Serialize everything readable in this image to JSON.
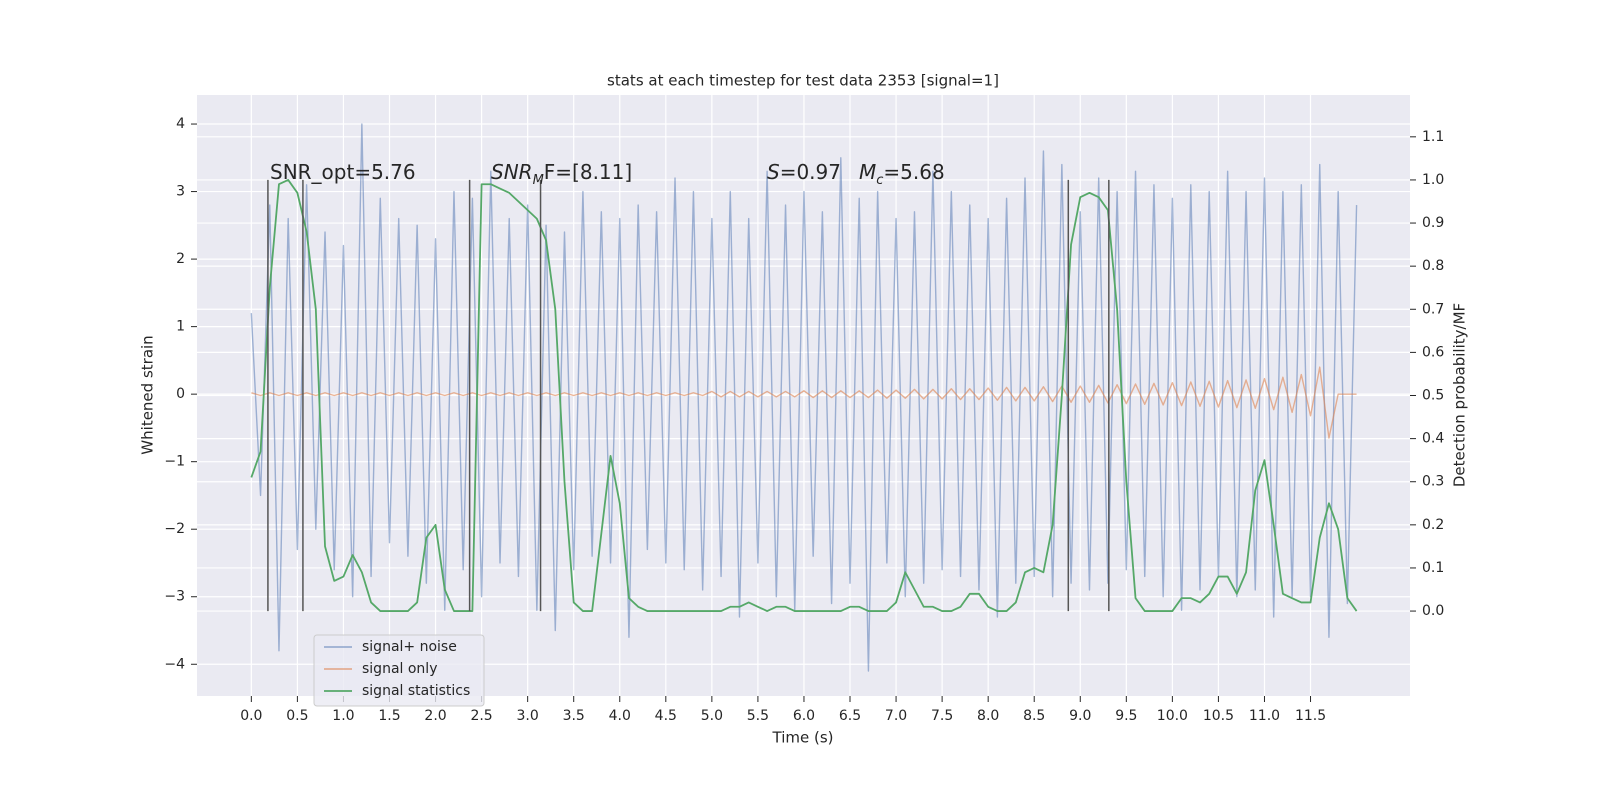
{
  "chart_data": {
    "type": "line",
    "title": "stats at each timestep for test data 2353 [signal=1]",
    "xlabel": "Time (s)",
    "ylabel": "Whitened strain",
    "y2label": "Detection probability/MF",
    "xlim": [
      -0.59,
      12.58
    ],
    "ylim": [
      -4.47,
      4.43
    ],
    "y2lim": [
      -0.197,
      1.197
    ],
    "xticks": [
      {
        "value": 0,
        "label": "0.0"
      },
      {
        "value": 0.5,
        "label": "0.5"
      },
      {
        "value": 1,
        "label": "1.0"
      },
      {
        "value": 1.5,
        "label": "1.5"
      },
      {
        "value": 2,
        "label": "2.0"
      },
      {
        "value": 2.5,
        "label": "2.5"
      },
      {
        "value": 3,
        "label": "3.0"
      },
      {
        "value": 3.5,
        "label": "3.5"
      },
      {
        "value": 4,
        "label": "4.0"
      },
      {
        "value": 4.5,
        "label": "4.5"
      },
      {
        "value": 5,
        "label": "5.0"
      },
      {
        "value": 5.5,
        "label": "5.5"
      },
      {
        "value": 6,
        "label": "6.0"
      },
      {
        "value": 6.5,
        "label": "6.5"
      },
      {
        "value": 7,
        "label": "7.0"
      },
      {
        "value": 7.5,
        "label": "7.5"
      },
      {
        "value": 8,
        "label": "8.0"
      },
      {
        "value": 8.5,
        "label": "8.5"
      },
      {
        "value": 9,
        "label": "9.0"
      },
      {
        "value": 9.5,
        "label": "9.5"
      },
      {
        "value": 10,
        "label": "10.0"
      },
      {
        "value": 10.5,
        "label": "10.5"
      },
      {
        "value": 11,
        "label": "11.0"
      },
      {
        "value": 11.5,
        "label": "11.5"
      }
    ],
    "yticks": [
      {
        "value": -4,
        "label": "−4"
      },
      {
        "value": -3,
        "label": "−3"
      },
      {
        "value": -2,
        "label": "−2"
      },
      {
        "value": -1,
        "label": "−1"
      },
      0,
      1,
      2,
      3,
      4
    ],
    "y2ticks": [
      {
        "value": 0,
        "label": "0.0"
      },
      {
        "value": 0.1,
        "label": "0.1"
      },
      {
        "value": 0.2,
        "label": "0.2"
      },
      {
        "value": 0.3,
        "label": "0.3"
      },
      {
        "value": 0.4,
        "label": "0.4"
      },
      {
        "value": 0.5,
        "label": "0.5"
      },
      {
        "value": 0.6,
        "label": "0.6"
      },
      {
        "value": 0.7,
        "label": "0.7"
      },
      {
        "value": 0.8,
        "label": "0.8"
      },
      {
        "value": 0.9,
        "label": "0.9"
      },
      {
        "value": 1.0,
        "label": "1.0"
      },
      {
        "value": 1.1,
        "label": "1.1"
      }
    ],
    "grid": true,
    "legend": "lower left",
    "x": [
      0,
      0.1,
      0.2,
      0.3,
      0.4,
      0.5,
      0.6,
      0.7,
      0.8,
      0.9,
      1,
      1.1,
      1.2,
      1.3,
      1.4,
      1.5,
      1.6,
      1.7,
      1.8,
      1.9,
      2,
      2.1,
      2.2,
      2.3,
      2.4,
      2.5,
      2.6,
      2.7,
      2.8,
      2.9,
      3,
      3.1,
      3.2,
      3.3,
      3.4,
      3.5,
      3.6,
      3.7,
      3.8,
      3.9,
      4,
      4.1,
      4.2,
      4.3,
      4.4,
      4.5,
      4.6,
      4.7,
      4.8,
      4.9,
      5,
      5.1,
      5.2,
      5.3,
      5.4,
      5.5,
      5.6,
      5.7,
      5.8,
      5.9,
      6,
      6.1,
      6.2,
      6.3,
      6.4,
      6.5,
      6.6,
      6.7,
      6.8,
      6.9,
      7,
      7.1,
      7.2,
      7.3,
      7.4,
      7.5,
      7.6,
      7.7,
      7.8,
      7.9,
      8,
      8.1,
      8.2,
      8.3,
      8.4,
      8.5,
      8.6,
      8.7,
      8.8,
      8.9,
      9,
      9.1,
      9.2,
      9.3,
      9.4,
      9.5,
      9.6,
      9.7,
      9.8,
      9.9,
      10,
      10.1,
      10.2,
      10.3,
      10.4,
      10.5,
      10.6,
      10.7,
      10.8,
      10.9,
      11,
      11.1,
      11.2,
      11.3,
      11.4,
      11.5,
      11.6,
      11.7,
      11.8,
      11.9,
      12
    ],
    "series": [
      {
        "name": "signal+ noise",
        "color": "#4c72b0",
        "opacity": 0.5,
        "values": [
          1.2,
          -1.5,
          2.8,
          -3.8,
          2.6,
          -2.3,
          3.1,
          -2.0,
          2.4,
          -2.6,
          2.2,
          -3.0,
          4.0,
          -2.7,
          2.9,
          -2.2,
          2.6,
          -2.4,
          2.5,
          -2.8,
          2.3,
          -3.2,
          3.0,
          -2.6,
          2.9,
          -3.0,
          3.3,
          -2.5,
          2.6,
          -2.7,
          2.8,
          -3.2,
          2.5,
          -3.5,
          2.4,
          -2.6,
          3.0,
          -2.4,
          2.7,
          -2.5,
          2.6,
          -3.6,
          2.8,
          -2.3,
          2.7,
          -2.5,
          3.2,
          -2.6,
          3.0,
          -2.9,
          2.6,
          -2.7,
          3.0,
          -3.3,
          2.6,
          -2.5,
          3.3,
          -3.0,
          2.8,
          -3.2,
          3.0,
          -2.4,
          2.7,
          -3.1,
          3.5,
          -2.8,
          2.9,
          -4.1,
          3.0,
          -2.5,
          2.6,
          -3.0,
          2.7,
          -2.8,
          3.3,
          -2.6,
          3.0,
          -2.7,
          2.8,
          -2.9,
          2.6,
          -3.3,
          2.9,
          -2.8,
          3.2,
          -2.7,
          3.6,
          -3.0,
          3.4,
          -2.8,
          2.7,
          -2.9,
          3.2,
          -2.8,
          3.0,
          -2.6,
          3.3,
          -2.7,
          3.1,
          -3.0,
          2.9,
          -3.2,
          3.1,
          -2.9,
          3.0,
          -2.7,
          3.3,
          -3.0,
          3.0,
          -2.9,
          3.2,
          -3.3,
          3.0,
          -3.0,
          3.1,
          -3.0,
          3.4,
          -3.6,
          3.0,
          -3.1,
          2.8
        ]
      },
      {
        "name": "signal only",
        "color": "#dd8452",
        "opacity": 0.6,
        "values": [
          0.02,
          -0.02,
          0.02,
          -0.02,
          0.02,
          -0.02,
          0.02,
          -0.02,
          0.02,
          -0.02,
          0.02,
          -0.02,
          0.02,
          -0.02,
          0.02,
          -0.02,
          0.02,
          -0.02,
          0.02,
          -0.02,
          0.02,
          -0.02,
          0.02,
          -0.02,
          0.02,
          -0.02,
          0.02,
          -0.02,
          0.02,
          -0.02,
          0.02,
          -0.02,
          0.02,
          -0.02,
          0.02,
          -0.02,
          0.02,
          -0.02,
          0.02,
          -0.02,
          0.02,
          -0.02,
          0.02,
          -0.02,
          0.02,
          -0.02,
          0.02,
          -0.02,
          0.02,
          -0.02,
          0.04,
          -0.04,
          0.04,
          -0.04,
          0.04,
          -0.04,
          0.04,
          -0.04,
          0.04,
          -0.04,
          0.05,
          -0.05,
          0.05,
          -0.05,
          0.05,
          -0.05,
          0.05,
          -0.05,
          0.06,
          -0.06,
          0.06,
          -0.06,
          0.07,
          -0.07,
          0.07,
          -0.07,
          0.08,
          -0.08,
          0.08,
          -0.08,
          0.09,
          -0.09,
          0.1,
          -0.1,
          0.1,
          -0.1,
          0.11,
          -0.11,
          0.12,
          -0.12,
          0.12,
          -0.12,
          0.13,
          -0.13,
          0.14,
          -0.14,
          0.15,
          -0.15,
          0.16,
          -0.16,
          0.17,
          -0.17,
          0.18,
          -0.18,
          0.19,
          -0.19,
          0.2,
          -0.2,
          0.21,
          -0.21,
          0.23,
          -0.23,
          0.25,
          -0.27,
          0.29,
          -0.32,
          0.4,
          -0.65,
          0,
          0,
          0
        ]
      },
      {
        "name": "signal statistics",
        "color": "#55a868",
        "axis": "y2",
        "opacity": 1,
        "values": [
          0.31,
          0.37,
          0.75,
          0.99,
          1.0,
          0.97,
          0.88,
          0.7,
          0.15,
          0.07,
          0.08,
          0.13,
          0.09,
          0.02,
          0.0,
          0.0,
          0.0,
          0.0,
          0.02,
          0.17,
          0.2,
          0.05,
          0.0,
          0.0,
          0.0,
          0.99,
          0.99,
          0.98,
          0.97,
          0.95,
          0.93,
          0.91,
          0.86,
          0.7,
          0.3,
          0.02,
          0.0,
          0.0,
          0.18,
          0.36,
          0.25,
          0.03,
          0.01,
          0.0,
          0.0,
          0.0,
          0.0,
          0.0,
          0.0,
          0.0,
          0.0,
          0.0,
          0.01,
          0.01,
          0.02,
          0.01,
          0.0,
          0.01,
          0.01,
          0.0,
          0.0,
          0.0,
          0.0,
          0.0,
          0.0,
          0.01,
          0.01,
          0.0,
          0.0,
          0.0,
          0.02,
          0.09,
          0.05,
          0.01,
          0.01,
          0.0,
          0.0,
          0.01,
          0.04,
          0.04,
          0.01,
          0.0,
          0.0,
          0.02,
          0.09,
          0.1,
          0.09,
          0.2,
          0.5,
          0.85,
          0.96,
          0.97,
          0.96,
          0.93,
          0.7,
          0.3,
          0.03,
          0.0,
          0.0,
          0.0,
          0.0,
          0.03,
          0.03,
          0.02,
          0.04,
          0.08,
          0.08,
          0.04,
          0.09,
          0.28,
          0.35,
          0.2,
          0.04,
          0.03,
          0.02,
          0.02,
          0.17,
          0.25,
          0.19,
          0.03,
          0.0
        ]
      }
    ],
    "vlines": [
      0.18,
      0.56,
      2.37,
      3.14,
      8.87,
      9.31
    ],
    "vline_span": [
      0,
      1.0
    ],
    "vline_color": "#555555",
    "annotations": [
      [
        {
          "text": "SNR_opt=5.76"
        }
      ],
      [
        {
          "text": "SNR",
          "style": "italic"
        },
        {
          "text": "M",
          "style": "sub"
        },
        {
          "text": "F=[8.11]"
        }
      ],
      [
        {
          "text": "S",
          "style": "italic"
        },
        {
          "text": "=0.97"
        }
      ],
      [
        {
          "text": "M",
          "style": "italic"
        },
        {
          "text": "c",
          "style": "sub"
        },
        {
          "text": "=5.68"
        }
      ]
    ]
  }
}
